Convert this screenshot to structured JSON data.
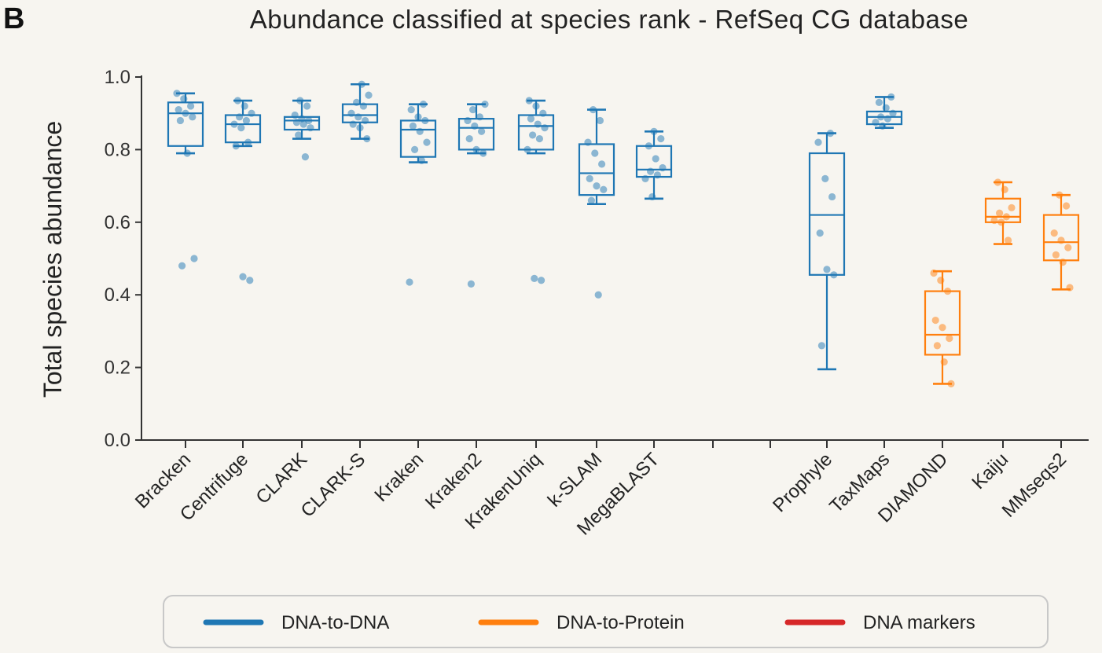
{
  "panel_letter": "B",
  "chart_data": {
    "type": "box",
    "title": "Abundance classified at species rank - RefSeq CG database",
    "xlabel": "",
    "ylabel": "Total species abundance",
    "ylim": [
      0.0,
      1.0
    ],
    "yticks": [
      "0.0",
      "0.2",
      "0.4",
      "0.6",
      "0.8",
      "1.0"
    ],
    "grid": false,
    "legend_placement": "bottom",
    "categories": [
      "Bracken",
      "Centrifuge",
      "CLARK",
      "CLARK-S",
      "Kraken",
      "Kraken2",
      "KrakenUniq",
      "k-SLAM",
      "MegaBLAST",
      "Prophyle",
      "TaxMaps",
      "DIAMOND",
      "Kaiju",
      "MMseqs2"
    ],
    "series": [
      {
        "name": "DNA-to-DNA",
        "color": "#1f77b4",
        "boxes": [
          {
            "label": "Bracken",
            "whislo": 0.79,
            "q1": 0.81,
            "med": 0.9,
            "q3": 0.93,
            "whishi": 0.955,
            "points": [
              0.955,
              0.94,
              0.92,
              0.91,
              0.9,
              0.89,
              0.88,
              0.79,
              0.5,
              0.48
            ]
          },
          {
            "label": "Centrifuge",
            "whislo": 0.81,
            "q1": 0.82,
            "med": 0.87,
            "q3": 0.895,
            "whishi": 0.935,
            "points": [
              0.935,
              0.92,
              0.9,
              0.89,
              0.88,
              0.87,
              0.86,
              0.82,
              0.81,
              0.45,
              0.44
            ]
          },
          {
            "label": "CLARK",
            "whislo": 0.83,
            "q1": 0.855,
            "med": 0.88,
            "q3": 0.89,
            "whishi": 0.935,
            "points": [
              0.935,
              0.92,
              0.895,
              0.885,
              0.88,
              0.875,
              0.87,
              0.86,
              0.84,
              0.78
            ]
          },
          {
            "label": "CLARK-S",
            "whislo": 0.83,
            "q1": 0.875,
            "med": 0.895,
            "q3": 0.925,
            "whishi": 0.98,
            "points": [
              0.98,
              0.95,
              0.93,
              0.92,
              0.9,
              0.89,
              0.88,
              0.87,
              0.86,
              0.83
            ]
          },
          {
            "label": "Kraken",
            "whislo": 0.765,
            "q1": 0.78,
            "med": 0.855,
            "q3": 0.88,
            "whishi": 0.925,
            "points": [
              0.925,
              0.91,
              0.89,
              0.88,
              0.865,
              0.85,
              0.82,
              0.8,
              0.77,
              0.435
            ]
          },
          {
            "label": "Kraken2",
            "whislo": 0.79,
            "q1": 0.8,
            "med": 0.86,
            "q3": 0.885,
            "whishi": 0.925,
            "points": [
              0.925,
              0.91,
              0.89,
              0.88,
              0.865,
              0.85,
              0.83,
              0.8,
              0.79,
              0.43
            ]
          },
          {
            "label": "KrakenUniq",
            "whislo": 0.79,
            "q1": 0.8,
            "med": 0.865,
            "q3": 0.895,
            "whishi": 0.935,
            "points": [
              0.935,
              0.92,
              0.9,
              0.885,
              0.87,
              0.86,
              0.84,
              0.83,
              0.8,
              0.445,
              0.44
            ]
          },
          {
            "label": "k-SLAM",
            "whislo": 0.65,
            "q1": 0.675,
            "med": 0.735,
            "q3": 0.815,
            "whishi": 0.91,
            "points": [
              0.91,
              0.88,
              0.82,
              0.79,
              0.76,
              0.72,
              0.7,
              0.69,
              0.66,
              0.4
            ]
          },
          {
            "label": "MegaBLAST",
            "whislo": 0.665,
            "q1": 0.725,
            "med": 0.745,
            "q3": 0.81,
            "whishi": 0.85,
            "points": [
              0.85,
              0.83,
              0.81,
              0.775,
              0.75,
              0.74,
              0.73,
              0.72,
              0.67
            ]
          },
          {
            "label": "Prophyle",
            "whislo": 0.195,
            "q1": 0.455,
            "med": 0.62,
            "q3": 0.79,
            "whishi": 0.845,
            "points": [
              0.845,
              0.82,
              0.72,
              0.67,
              0.57,
              0.47,
              0.455,
              0.26
            ]
          },
          {
            "label": "TaxMaps",
            "whislo": 0.86,
            "q1": 0.87,
            "med": 0.89,
            "q3": 0.905,
            "whishi": 0.945,
            "points": [
              0.945,
              0.93,
              0.915,
              0.9,
              0.89,
              0.885,
              0.875,
              0.865
            ]
          }
        ]
      },
      {
        "name": "DNA-to-Protein",
        "color": "#ff7f0e",
        "boxes": [
          {
            "label": "DIAMOND",
            "whislo": 0.155,
            "q1": 0.235,
            "med": 0.29,
            "q3": 0.41,
            "whishi": 0.465,
            "points": [
              0.46,
              0.44,
              0.41,
              0.33,
              0.31,
              0.28,
              0.26,
              0.215,
              0.155
            ]
          },
          {
            "label": "Kaiju",
            "whislo": 0.54,
            "q1": 0.6,
            "med": 0.615,
            "q3": 0.665,
            "whishi": 0.71,
            "points": [
              0.71,
              0.69,
              0.64,
              0.625,
              0.615,
              0.605,
              0.6,
              0.55
            ]
          },
          {
            "label": "MMseqs2",
            "whislo": 0.415,
            "q1": 0.495,
            "med": 0.545,
            "q3": 0.62,
            "whishi": 0.675,
            "points": [
              0.675,
              0.645,
              0.57,
              0.55,
              0.53,
              0.51,
              0.49,
              0.42
            ]
          }
        ]
      },
      {
        "name": "DNA markers",
        "color": "#d62728",
        "boxes": []
      }
    ]
  },
  "legend": [
    {
      "label": "DNA-to-DNA",
      "color": "#1f77b4"
    },
    {
      "label": "DNA-to-Protein",
      "color": "#ff7f0e"
    },
    {
      "label": "DNA markers",
      "color": "#d62728"
    }
  ]
}
